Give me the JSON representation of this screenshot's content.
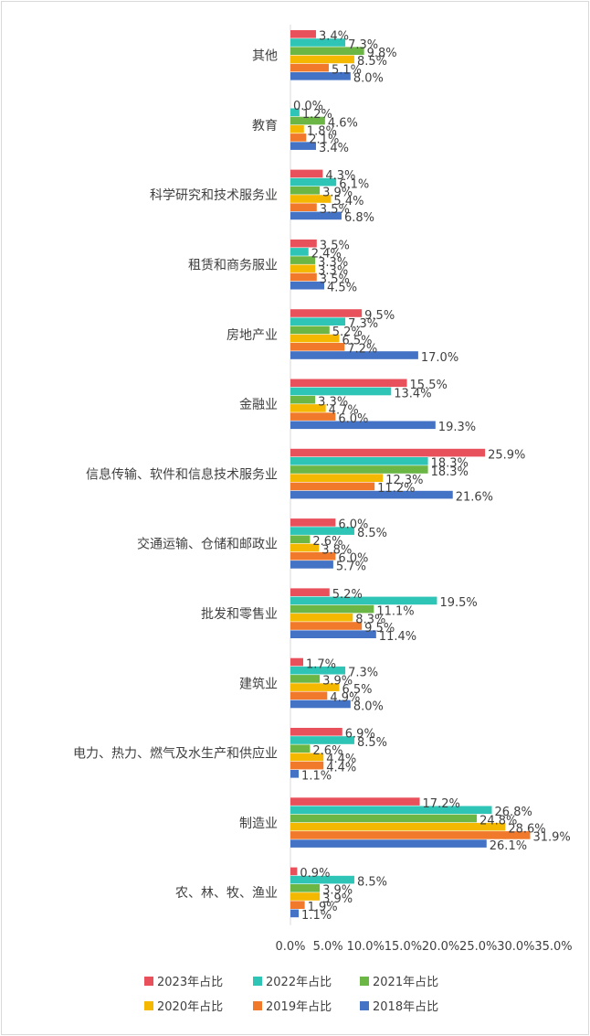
{
  "chart_data": {
    "type": "bar",
    "orientation": "horizontal",
    "title": "",
    "xlabel": "",
    "ylabel": "",
    "xlim": [
      0,
      35
    ],
    "grid": false,
    "legend_position": "bottom",
    "x_ticks": [
      "0.0%",
      "5.0%",
      "10.0%",
      "15.0%",
      "20.0%",
      "25.0%",
      "30.0%",
      "35.0%"
    ],
    "categories": [
      "其他",
      "教育",
      "科学研究和技术服务业",
      "租赁和商务服业",
      "房地产业",
      "金融业",
      "信息传输、软件和信息技术服务业",
      "交通运输、仓储和邮政业",
      "批发和零售业",
      "建筑业",
      "电力、热力、燃气及水生产和供应业",
      "制造业",
      "农、林、牧、渔业"
    ],
    "series": [
      {
        "name": "2023年占比",
        "color": "#e8515c",
        "values": [
          3.4,
          0.0,
          4.3,
          3.5,
          9.5,
          15.5,
          25.9,
          6.0,
          5.2,
          1.7,
          6.9,
          17.2,
          0.9
        ],
        "labels": [
          "3.4%",
          "0.0%",
          "4.3%",
          "3.5%",
          "9.5%",
          "15.5%",
          "25.9%",
          "6.0%",
          "5.2%",
          "1.7%",
          "6.9%",
          "17.2%",
          "0.9%"
        ]
      },
      {
        "name": "2022年占比",
        "color": "#2ec4b6",
        "values": [
          7.3,
          1.2,
          6.1,
          2.4,
          7.3,
          13.4,
          18.3,
          8.5,
          19.5,
          7.3,
          8.5,
          26.8,
          8.5
        ],
        "labels": [
          "7.3%",
          "1.2%",
          "6.1%",
          "2.4%",
          "7.3%",
          "13.4%",
          "18.3%",
          "8.5%",
          "19.5%",
          "7.3%",
          "8.5%",
          "26.8%",
          "8.5%"
        ]
      },
      {
        "name": "2021年占比",
        "color": "#6bb644",
        "values": [
          9.8,
          4.6,
          3.9,
          3.3,
          5.2,
          3.3,
          18.3,
          2.6,
          11.1,
          3.9,
          2.6,
          24.8,
          3.9
        ],
        "labels": [
          "9.8%",
          "4.6%",
          "3.9%",
          "3.3%",
          "5.2%",
          "3.3%",
          "18.3%",
          "2.6%",
          "11.1%",
          "3.9%",
          "2.6%",
          "24.8%",
          "3.9%"
        ]
      },
      {
        "name": "2020年占比",
        "color": "#f5b800",
        "values": [
          8.5,
          1.8,
          5.4,
          3.3,
          6.5,
          4.7,
          12.3,
          3.8,
          8.3,
          6.5,
          4.4,
          28.6,
          3.9
        ],
        "labels": [
          "8.5%",
          "1.8%",
          "5.4%",
          "3.3%",
          "6.5%",
          "4.7%",
          "12.3%",
          "3.8%",
          "8.3%",
          "6.5%",
          "4.4%",
          "28.6%",
          "3.9%"
        ]
      },
      {
        "name": "2019年占比",
        "color": "#f0792b",
        "values": [
          5.1,
          2.1,
          3.5,
          3.5,
          7.2,
          6.0,
          11.2,
          6.0,
          9.5,
          4.9,
          4.4,
          31.9,
          1.9
        ],
        "labels": [
          "5.1%",
          "2.1%",
          "3.5%",
          "3.5%",
          "7.2%",
          "6.0%",
          "11.2%",
          "6.0%",
          "9.5%",
          "4.9%",
          "4.4%",
          "31.9%",
          "1.9%"
        ]
      },
      {
        "name": "2018年占比",
        "color": "#4472c4",
        "values": [
          8.0,
          3.4,
          6.8,
          4.5,
          17.0,
          19.3,
          21.6,
          5.7,
          11.4,
          8.0,
          1.1,
          26.1,
          1.1
        ],
        "labels": [
          "8.0%",
          "3.4%",
          "6.8%",
          "4.5%",
          "17.0%",
          "19.3%",
          "21.6%",
          "5.7%",
          "11.4%",
          "8.0%",
          "1.1%",
          "26.1%",
          "1.1%"
        ]
      }
    ]
  }
}
